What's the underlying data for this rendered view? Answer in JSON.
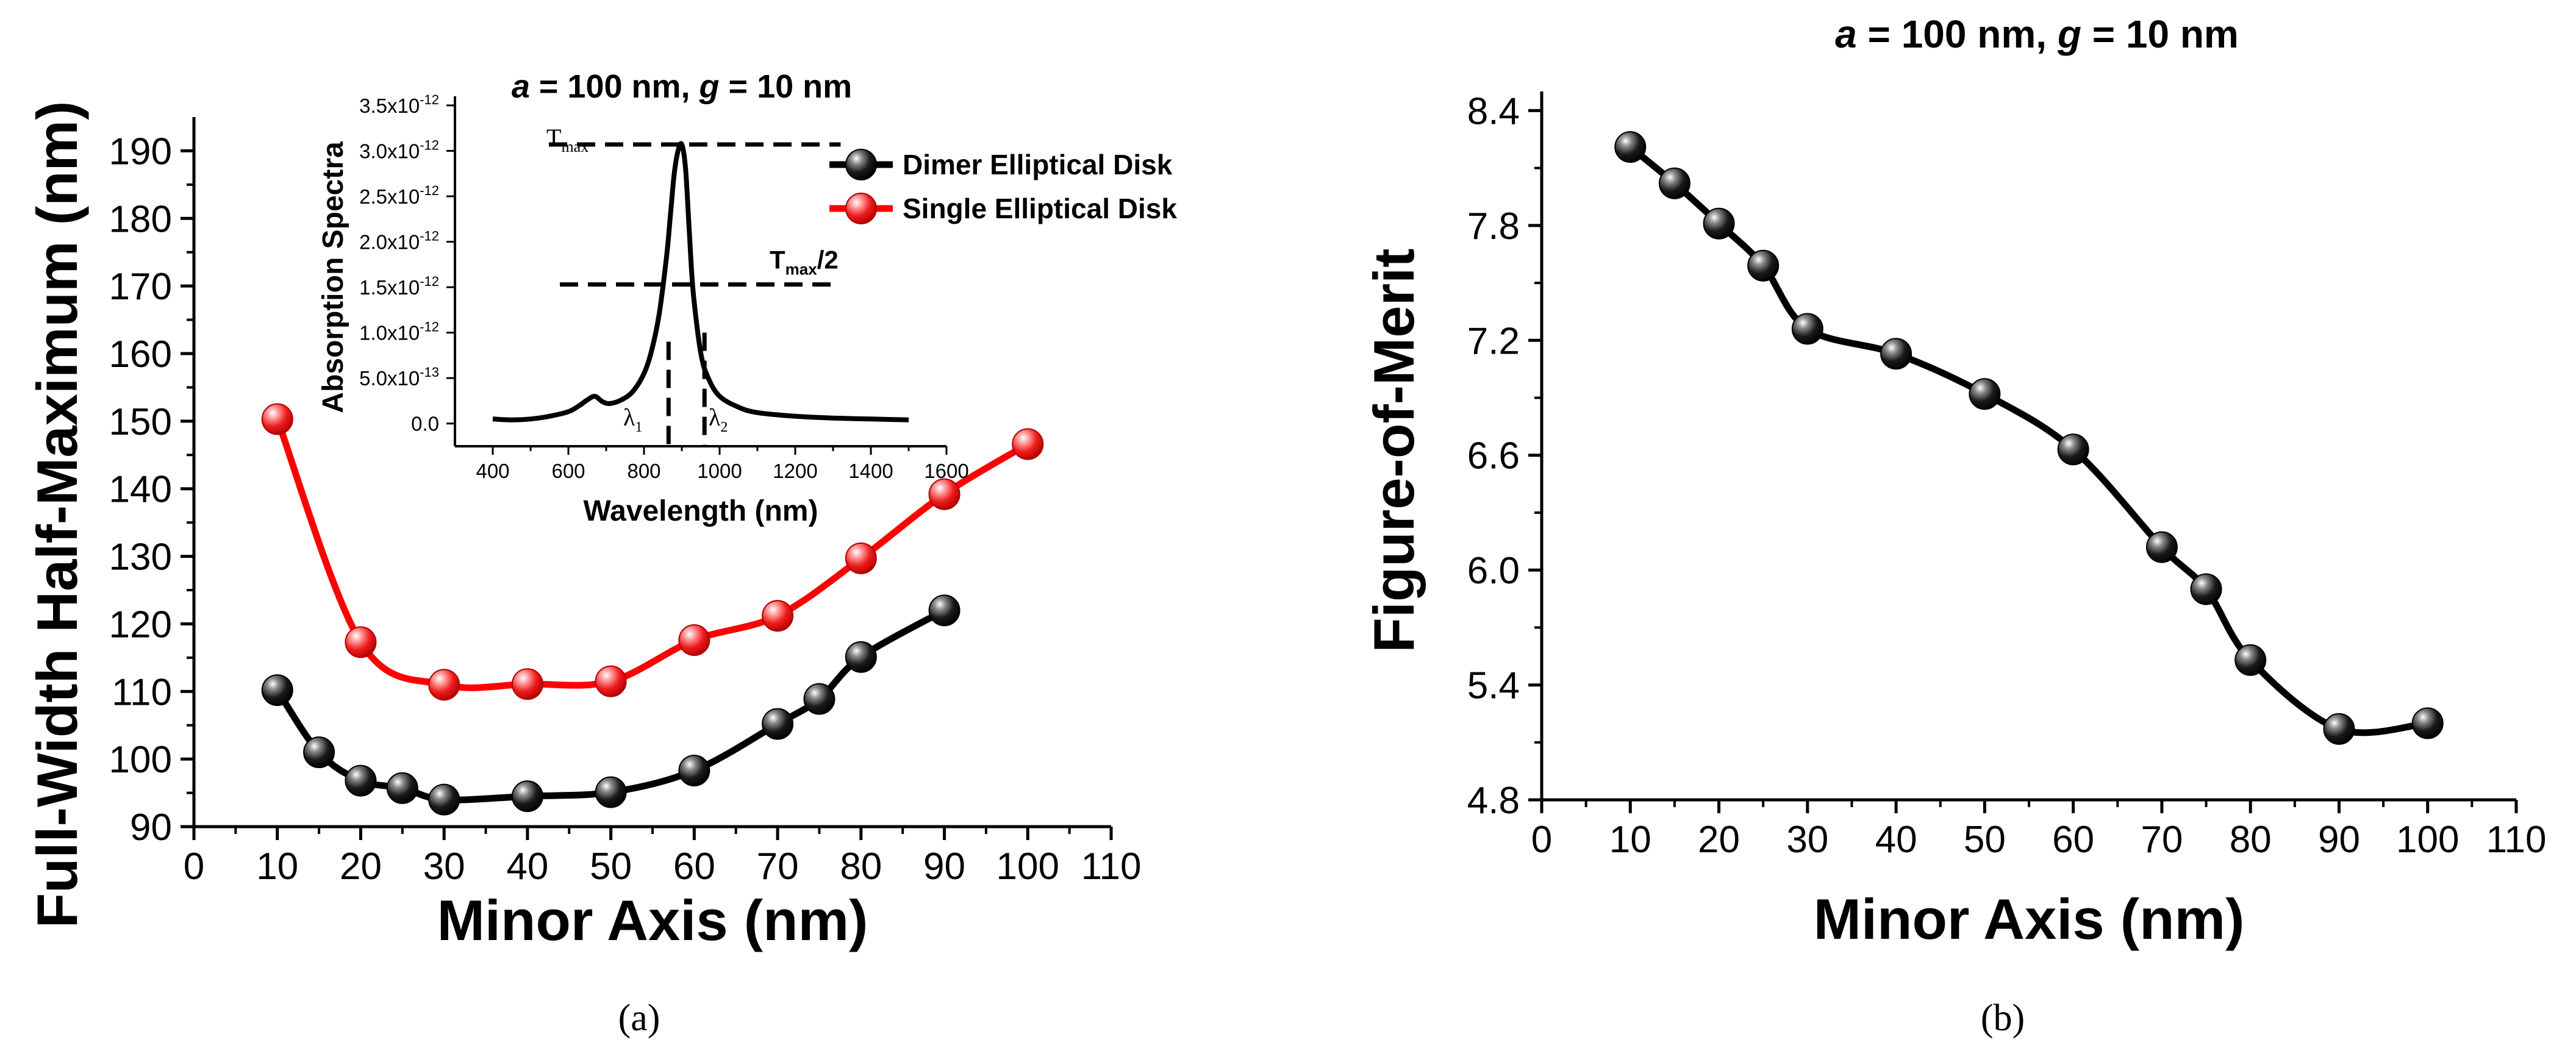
{
  "colors": {
    "dimer": "#000000",
    "single": "#ff0000",
    "axis": "#000000"
  },
  "chart_data": [
    {
      "id": "a",
      "type": "line",
      "caption": "(a)",
      "xlabel": "Minor Axis (nm)",
      "ylabel": "Full-Width Half-Maximum (nm)",
      "xlim": [
        0,
        110
      ],
      "ylim": [
        90,
        195
      ],
      "xticks": [
        0,
        10,
        20,
        30,
        40,
        50,
        60,
        70,
        80,
        90,
        100,
        110
      ],
      "yticks": [
        90,
        100,
        110,
        120,
        130,
        140,
        150,
        160,
        170,
        180,
        190
      ],
      "legend_position": "top-right",
      "series": [
        {
          "name": "Dimer Elliptical Disk",
          "color": "#000000",
          "x": [
            10,
            15,
            20,
            25,
            30,
            40,
            50,
            60,
            70,
            75,
            80,
            90
          ],
          "y": [
            110.2,
            101,
            96.8,
            95.7,
            94,
            94.5,
            95.1,
            98.3,
            105.2,
            108.9,
            115.1,
            122
          ]
        },
        {
          "name": "Single Elliptical Disk",
          "color": "#ff0000",
          "x": [
            10,
            20,
            30,
            40,
            50,
            60,
            70,
            80,
            90,
            100
          ],
          "y": [
            150.3,
            117.3,
            111,
            111.1,
            111.5,
            117.6,
            121.2,
            129.7,
            139.2,
            146.6
          ]
        }
      ],
      "inset": {
        "type": "line",
        "title_a": "a",
        "title_a_rest": " = 100 nm,  ",
        "title_g": "g",
        "title_g_rest": " = 10 nm",
        "xlabel": "Wavelength (nm)",
        "ylabel": "Absorption Spectra",
        "xlim": [
          300,
          1600
        ],
        "ylim": [
          -2.5e-13,
          3.6e-12
        ],
        "xticks": [
          400,
          600,
          800,
          1000,
          1200,
          1400,
          1600
        ],
        "ytick_values": [
          0,
          5e-13,
          1e-12,
          1.5e-12,
          2e-12,
          2.5e-12,
          3e-12,
          3.5e-12
        ],
        "ytick_labels": [
          "0.0",
          "5.0x10",
          "1.0x10",
          "1.5x10",
          "2.0x10",
          "2.5x10",
          "3.0x10",
          "3.5x10"
        ],
        "ytick_exponents": [
          "",
          "-13",
          "-12",
          "-12",
          "-12",
          "-12",
          "-12",
          "-12"
        ],
        "peak_wavelength": 900,
        "peak_value": 3.07e-12,
        "half_value": 1.53e-12,
        "lambda1": 865,
        "lambda2": 960,
        "spectrum_x": [
          400,
          450,
          500,
          550,
          600,
          630,
          650,
          670,
          690,
          710,
          740,
          770,
          800,
          820,
          840,
          860,
          870,
          880,
          890,
          900,
          910,
          920,
          930,
          950,
          970,
          1000,
          1050,
          1100,
          1200,
          1300,
          1400,
          1500
        ],
        "spectrum_y": [
          5e-14,
          4e-14,
          5e-14,
          8e-14,
          1.3e-13,
          2e-13,
          2.6e-13,
          3e-13,
          2.4e-13,
          2.2e-13,
          2.6e-13,
          3.5e-13,
          5.5e-13,
          8e-13,
          1.2e-12,
          1.85e-12,
          2.3e-12,
          2.75e-12,
          3e-12,
          3.07e-12,
          2.8e-12,
          2.1e-12,
          1.45e-12,
          7.8e-13,
          5e-13,
          3e-13,
          1.8e-13,
          1.2e-13,
          8e-14,
          6e-14,
          5e-14,
          4e-14
        ],
        "annotations": {
          "tmax": "T",
          "tmax_sub": "max",
          "thalf": "T",
          "thalf_sub": "max",
          "thalf_suffix": "/2",
          "l1": "λ",
          "l1_sub": "1",
          "l2": "λ",
          "l2_sub": "2"
        }
      }
    },
    {
      "id": "b",
      "type": "line",
      "caption": "(b)",
      "title_a": "a",
      "title_a_rest": " = 100 nm, ",
      "title_g": "g",
      "title_g_rest": " = 10 nm",
      "xlabel": "Minor Axis (nm)",
      "ylabel": "Figure-of-Merit",
      "xlim": [
        0,
        110
      ],
      "ylim": [
        4.8,
        8.5
      ],
      "xticks": [
        0,
        10,
        20,
        30,
        40,
        50,
        60,
        70,
        80,
        90,
        100,
        110
      ],
      "yticks": [
        4.8,
        5.4,
        6.0,
        6.6,
        7.2,
        7.8,
        8.4
      ],
      "series": [
        {
          "name": "Figure-of-Merit",
          "color": "#000000",
          "x": [
            10,
            15,
            20,
            25,
            30,
            40,
            50,
            60,
            70,
            75,
            80,
            90,
            100
          ],
          "y": [
            8.21,
            8.02,
            7.81,
            7.59,
            7.26,
            7.13,
            6.92,
            6.63,
            6.12,
            5.9,
            5.53,
            5.17,
            5.2
          ]
        }
      ]
    }
  ]
}
